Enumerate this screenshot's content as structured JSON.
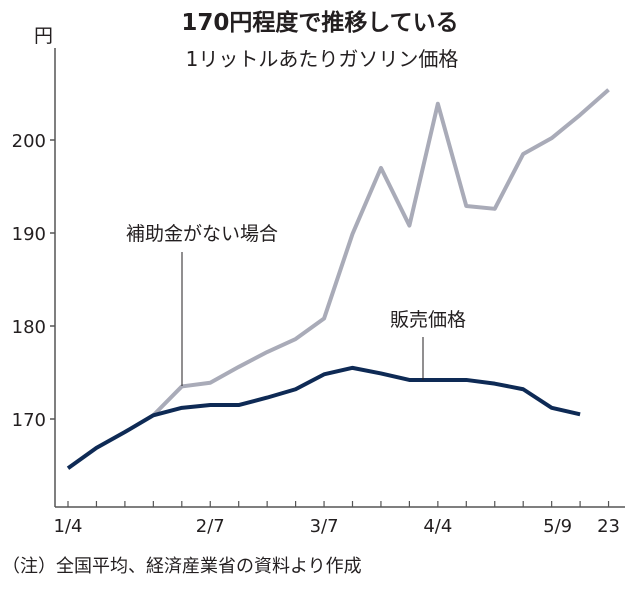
{
  "chart_data": {
    "type": "line",
    "title": "170円程度で推移している",
    "subtitle": "1リットルあたりガソリン価格",
    "ylabel": "円",
    "ylim": [
      160,
      207
    ],
    "yticks": [
      170,
      180,
      190,
      200
    ],
    "x_count": 20,
    "xtick_labels": [
      {
        "index": 0,
        "label": "1/4"
      },
      {
        "index": 5,
        "label": "2/7"
      },
      {
        "index": 9,
        "label": "3/7"
      },
      {
        "index": 13,
        "label": "4/4"
      },
      {
        "index": 17,
        "label": "5/9"
      },
      {
        "index": 19,
        "label": "23"
      }
    ],
    "series": [
      {
        "name": "補助金がない場合",
        "color": "#a9abb8",
        "start_index": 3,
        "values": [
          170.4,
          173.5,
          173.9,
          175.6,
          177.2,
          178.6,
          180.8,
          189.9,
          197.0,
          190.8,
          203.9,
          192.9,
          192.6,
          198.5,
          200.2,
          202.7,
          205.4
        ]
      },
      {
        "name": "販売価格",
        "color": "#0e2a55",
        "start_index": 0,
        "values": [
          164.7,
          166.9,
          168.6,
          170.4,
          171.2,
          171.5,
          171.5,
          172.3,
          173.2,
          174.8,
          175.5,
          174.9,
          174.2,
          174.2,
          174.2,
          173.8,
          173.2,
          171.2,
          170.5
        ]
      }
    ],
    "annotations": [
      "補助金がない場合",
      "販売価格"
    ],
    "note": "（注）全国平均、経済産業省の資料より作成"
  }
}
